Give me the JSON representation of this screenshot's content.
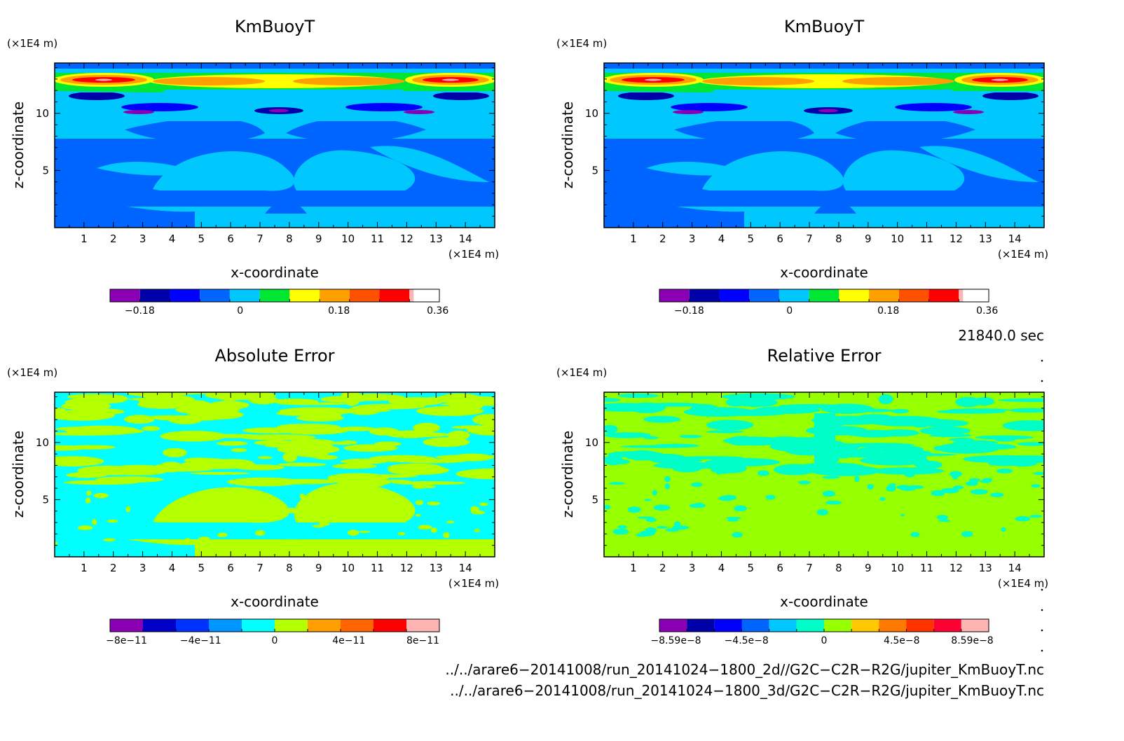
{
  "chart_data": [
    {
      "type": "heatmap",
      "title": "KmBuoyT",
      "xlabel": "x-coordinate",
      "ylabel": "z-coordinate",
      "x_unit": "(×1E4 m)",
      "y_unit": "(×1E4 m)",
      "xlim": [
        0,
        15
      ],
      "ylim": [
        0,
        14.4
      ],
      "x_ticks": [
        "1",
        "2",
        "3",
        "4",
        "5",
        "6",
        "7",
        "8",
        "9",
        "10",
        "11",
        "12",
        "13",
        "14"
      ],
      "y_ticks": [
        "5",
        "10"
      ],
      "colorbar": {
        "levels": [
          -0.27,
          -0.225,
          -0.18,
          -0.135,
          -0.09,
          -0.045,
          0,
          0.045,
          0.09,
          0.135,
          0.18,
          0.225,
          0.27,
          0.315,
          0.36
        ],
        "colors": [
          "#8b00b4",
          "#0000a8",
          "#0000ff",
          "#0064ff",
          "#00c8ff",
          "#00e632",
          "#ffff00",
          "#ffa000",
          "#ff5000",
          "#ff0000",
          "#ffb4b4"
        ],
        "labels": [
          "−0.18",
          "0",
          "0.18",
          "0.36"
        ],
        "label_values": [
          -0.18,
          0,
          0.18,
          0.36
        ]
      }
    },
    {
      "type": "heatmap",
      "title": "KmBuoyT",
      "xlabel": "x-coordinate",
      "ylabel": "z-coordinate",
      "x_unit": "(×1E4 m)",
      "y_unit": "(×1E4 m)",
      "xlim": [
        0,
        15
      ],
      "ylim": [
        0,
        14.4
      ],
      "x_ticks": [
        "1",
        "2",
        "3",
        "4",
        "5",
        "6",
        "7",
        "8",
        "9",
        "10",
        "11",
        "12",
        "13",
        "14"
      ],
      "y_ticks": [
        "5",
        "10"
      ],
      "colorbar": {
        "colors": [
          "#8b00b4",
          "#0000a8",
          "#0000ff",
          "#0064ff",
          "#00c8ff",
          "#00e632",
          "#ffff00",
          "#ffa000",
          "#ff5000",
          "#ff0000",
          "#ffb4b4"
        ],
        "labels": [
          "−0.18",
          "0",
          "0.18",
          "0.36"
        ],
        "label_values": [
          -0.18,
          0,
          0.18,
          0.36
        ]
      }
    },
    {
      "type": "heatmap",
      "title": "Absolute Error",
      "xlabel": "x-coordinate",
      "ylabel": "z-coordinate",
      "x_unit": "(×1E4 m)",
      "y_unit": "(×1E4 m)",
      "xlim": [
        0,
        15
      ],
      "ylim": [
        0,
        14.4
      ],
      "x_ticks": [
        "1",
        "2",
        "3",
        "4",
        "5",
        "6",
        "7",
        "8",
        "9",
        "10",
        "11",
        "12",
        "13",
        "14"
      ],
      "y_ticks": [
        "5",
        "10"
      ],
      "colorbar": {
        "colors": [
          "#8b00b4",
          "#0000c8",
          "#0032ff",
          "#0096ff",
          "#00ffff",
          "#b4ff00",
          "#ffa000",
          "#ff6400",
          "#ff0000",
          "#ffb4b4"
        ],
        "labels": [
          "−8e−11",
          "−4e−11",
          "0",
          "4e−11",
          "8e−11"
        ],
        "label_values": [
          -8e-11,
          -4e-11,
          0,
          4e-11,
          8e-11
        ]
      }
    },
    {
      "type": "heatmap",
      "title": "Relative Error",
      "xlabel": "x-coordinate",
      "ylabel": "z-coordinate",
      "x_unit": "(×1E4 m)",
      "y_unit": "(×1E4 m)",
      "xlim": [
        0,
        15
      ],
      "ylim": [
        0,
        14.4
      ],
      "x_ticks": [
        "1",
        "2",
        "3",
        "4",
        "5",
        "6",
        "7",
        "8",
        "9",
        "10",
        "11",
        "12",
        "13",
        "14"
      ],
      "y_ticks": [
        "5",
        "10"
      ],
      "colorbar": {
        "colors": [
          "#8b00b4",
          "#0000a8",
          "#0000ff",
          "#0064ff",
          "#00c8ff",
          "#00ffc8",
          "#96ff00",
          "#ffc800",
          "#ff7800",
          "#ff3200",
          "#ff0032",
          "#ffb4b4"
        ],
        "labels": [
          "−8.59e−8",
          "−4.5e−8",
          "0",
          "4.5e−8",
          "8.59e−8"
        ],
        "label_values": [
          -8.59e-08,
          -4.5e-08,
          0,
          4.5e-08,
          8.59e-08
        ]
      }
    }
  ],
  "info": {
    "time": "21840.0 sec",
    "file1": "../../arare6−20141008/run_20141024−1800_2d//G2C−C2R−R2G/jupiter_KmBuoyT.nc",
    "file2": "../../arare6−20141008/run_20141024−1800_3d/G2C−C2R−R2G/jupiter_KmBuoyT.nc"
  },
  "palette": {
    "km_bg": "#0064ff",
    "km_light": "#00c8ff",
    "km_dark": "#0000ff",
    "km_navy": "#0000a8",
    "km_purple": "#8b00b4",
    "km_green": "#00e632",
    "km_yellow": "#ffff00",
    "km_orange": "#ffa000",
    "km_red": "#ff0000",
    "km_pink": "#ffb4b4",
    "abs_cyan": "#00ffff",
    "abs_yellowgreen": "#b4ff00",
    "rel_lime": "#96ff00",
    "rel_teal": "#00ffc8"
  }
}
